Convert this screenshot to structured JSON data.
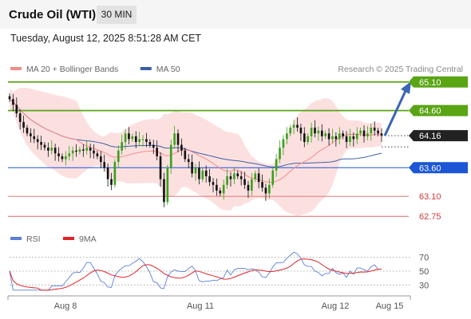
{
  "header": {
    "title": "Crude Oil (WTI)",
    "timeframe": "30 MIN"
  },
  "timestamp": "Tuesday, August 12, 2025 8:51:28 AM CET",
  "legend": {
    "items": [
      {
        "label": "MA 20 + Bollinger Bands",
        "color": "#f48c8c"
      },
      {
        "label": "MA 50",
        "color": "#3b5fa6"
      }
    ],
    "credit": "Research © 2025 Trading Central"
  },
  "rsi_legend": [
    {
      "label": "RSI",
      "color": "#5b7fd6"
    },
    {
      "label": "9MA",
      "color": "#e0242a"
    }
  ],
  "chart_data": [
    {
      "type": "candlestick",
      "ylim": [
        62.6,
        65.25
      ],
      "last_price": 64.16,
      "resistance": [
        {
          "label": "65.10",
          "value": 65.1,
          "color": "#5aa514"
        },
        {
          "label": "64.60",
          "value": 64.6,
          "color": "#5aa514"
        }
      ],
      "pivot": {
        "label": "63.60",
        "value": 63.6,
        "color": "#1a56d6"
      },
      "support": [
        {
          "label": "63.10",
          "value": 63.1,
          "color": "#e06666"
        },
        {
          "label": "62.75",
          "value": 62.75,
          "color": "#e06666"
        }
      ],
      "current": {
        "label": "64.16",
        "value": 64.16
      },
      "forecast_target": 65.0,
      "x_labels": [
        "Aug 8",
        "Aug 11",
        "Aug 12",
        "Aug 15"
      ],
      "close": [
        64.8,
        64.7,
        64.55,
        64.4,
        64.3,
        64.2,
        64.15,
        64.1,
        64.05,
        64.0,
        63.95,
        63.9,
        63.95,
        63.85,
        63.8,
        63.75,
        63.8,
        63.85,
        63.9,
        63.88,
        63.92,
        63.9,
        63.95,
        63.9,
        63.85,
        63.8,
        63.7,
        63.6,
        63.4,
        63.3,
        63.7,
        63.9,
        64.05,
        64.2,
        64.1,
        64.15,
        64.05,
        64.1,
        64.1,
        64.05,
        64.0,
        63.95,
        63.8,
        63.4,
        63.0,
        63.6,
        64.0,
        64.2,
        64.0,
        63.9,
        63.75,
        63.7,
        63.5,
        63.6,
        63.4,
        63.55,
        63.45,
        63.35,
        63.3,
        63.2,
        63.15,
        63.3,
        63.45,
        63.4,
        63.5,
        63.45,
        63.4,
        63.3,
        63.2,
        63.4,
        63.5,
        63.35,
        63.25,
        63.15,
        63.3,
        63.55,
        63.75,
        63.95,
        64.1,
        64.2,
        64.3,
        64.35,
        64.3,
        64.2,
        64.05,
        64.15,
        64.3,
        64.2,
        64.25,
        64.15,
        64.2,
        64.1,
        64.15,
        64.1,
        64.2,
        64.15,
        64.05,
        64.15,
        64.1,
        64.2,
        64.25,
        64.15,
        64.2,
        64.3,
        64.25,
        64.2,
        64.16
      ]
    },
    {
      "type": "line",
      "ylim": [
        20,
        80
      ],
      "levels": [
        {
          "label": "70",
          "value": 70
        },
        {
          "label": "50",
          "value": 50
        },
        {
          "label": "30",
          "value": 30
        }
      ]
    }
  ]
}
